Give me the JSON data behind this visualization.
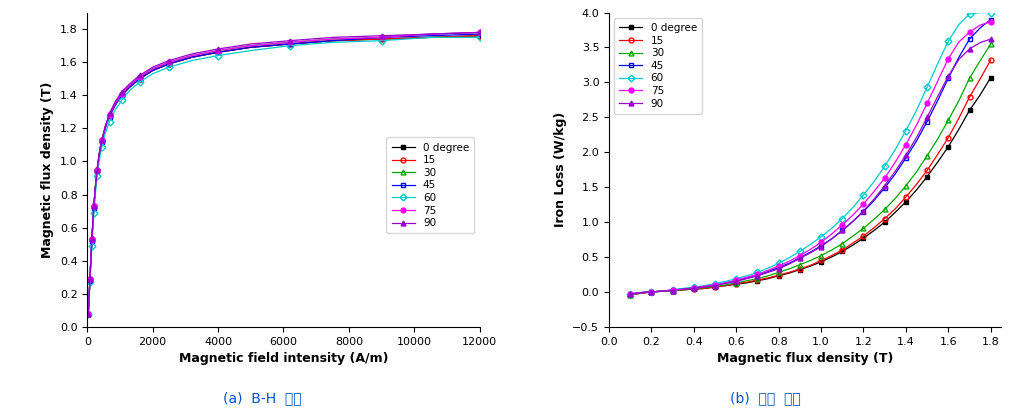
{
  "bh_xlabel": "Magnetic field intensity (A/m)",
  "bh_ylabel": "Magnetic flux density (T)",
  "bh_xlim": [
    0,
    12000
  ],
  "bh_ylim": [
    0.0,
    1.9
  ],
  "bh_yticks": [
    0.0,
    0.2,
    0.4,
    0.6,
    0.8,
    1.0,
    1.2,
    1.4,
    1.6,
    1.8
  ],
  "bh_xticks": [
    0,
    2000,
    4000,
    6000,
    8000,
    10000,
    12000
  ],
  "il_xlabel": "Magnetic flux density (T)",
  "il_ylabel": "Iron Loss (W/kg)",
  "il_xlim": [
    0.05,
    1.85
  ],
  "il_ylim": [
    -0.5,
    4.0
  ],
  "il_yticks": [
    -0.5,
    0.0,
    0.5,
    1.0,
    1.5,
    2.0,
    2.5,
    3.0,
    3.5,
    4.0
  ],
  "il_xticks": [
    0.0,
    0.2,
    0.4,
    0.6,
    0.8,
    1.0,
    1.2,
    1.4,
    1.6,
    1.8
  ],
  "caption_a": "(a)  B-H  공선",
  "caption_b": "(b)  철손  공선",
  "legend_labels": [
    "0 degree",
    "15",
    "30",
    "45",
    "60",
    "75",
    "90"
  ],
  "series_colors": [
    "#000000",
    "#ff0000",
    "#00aa00",
    "#0000ff",
    "#00cccc",
    "#ff00ff",
    "#9900cc"
  ],
  "series_markers": [
    "s",
    "o",
    "^",
    "s",
    "D",
    "o",
    "^"
  ],
  "series_fillstyle": [
    "full",
    "none",
    "none",
    "none",
    "none",
    "full",
    "full"
  ],
  "bh_H": [
    30,
    55,
    80,
    110,
    140,
    170,
    200,
    250,
    300,
    370,
    450,
    550,
    680,
    850,
    1050,
    1300,
    1600,
    2000,
    2500,
    3200,
    4000,
    5000,
    6200,
    7500,
    9000,
    10500,
    12000
  ],
  "bh_B": {
    "deg0": [
      0.08,
      0.18,
      0.29,
      0.41,
      0.53,
      0.63,
      0.73,
      0.85,
      0.95,
      1.05,
      1.13,
      1.21,
      1.28,
      1.34,
      1.4,
      1.45,
      1.5,
      1.55,
      1.59,
      1.63,
      1.66,
      1.69,
      1.71,
      1.73,
      1.74,
      1.75,
      1.76
    ],
    "deg15": [
      0.08,
      0.18,
      0.29,
      0.41,
      0.53,
      0.63,
      0.73,
      0.85,
      0.95,
      1.05,
      1.13,
      1.21,
      1.28,
      1.34,
      1.4,
      1.45,
      1.5,
      1.55,
      1.59,
      1.63,
      1.66,
      1.69,
      1.71,
      1.73,
      1.74,
      1.75,
      1.76
    ],
    "deg30": [
      0.08,
      0.18,
      0.29,
      0.41,
      0.53,
      0.63,
      0.73,
      0.85,
      0.95,
      1.05,
      1.13,
      1.21,
      1.28,
      1.35,
      1.41,
      1.46,
      1.51,
      1.56,
      1.6,
      1.64,
      1.67,
      1.7,
      1.72,
      1.74,
      1.75,
      1.77,
      1.78
    ],
    "deg45": [
      0.08,
      0.17,
      0.28,
      0.4,
      0.52,
      0.62,
      0.72,
      0.84,
      0.94,
      1.04,
      1.12,
      1.2,
      1.27,
      1.34,
      1.4,
      1.45,
      1.5,
      1.55,
      1.59,
      1.63,
      1.66,
      1.69,
      1.71,
      1.73,
      1.75,
      1.76,
      1.77
    ],
    "deg60": [
      0.08,
      0.17,
      0.27,
      0.38,
      0.49,
      0.59,
      0.69,
      0.81,
      0.91,
      1.01,
      1.09,
      1.17,
      1.24,
      1.31,
      1.37,
      1.43,
      1.48,
      1.53,
      1.57,
      1.61,
      1.64,
      1.67,
      1.7,
      1.72,
      1.73,
      1.75,
      1.75
    ],
    "deg75": [
      0.08,
      0.18,
      0.29,
      0.41,
      0.53,
      0.63,
      0.73,
      0.85,
      0.95,
      1.05,
      1.13,
      1.21,
      1.28,
      1.35,
      1.41,
      1.46,
      1.51,
      1.56,
      1.6,
      1.64,
      1.67,
      1.7,
      1.72,
      1.74,
      1.75,
      1.77,
      1.78
    ],
    "deg90": [
      0.08,
      0.18,
      0.29,
      0.41,
      0.53,
      0.63,
      0.73,
      0.85,
      0.95,
      1.05,
      1.13,
      1.21,
      1.29,
      1.36,
      1.42,
      1.47,
      1.52,
      1.57,
      1.61,
      1.65,
      1.68,
      1.71,
      1.73,
      1.75,
      1.76,
      1.77,
      1.78
    ]
  },
  "il_B": [
    0.1,
    0.15,
    0.2,
    0.25,
    0.3,
    0.35,
    0.4,
    0.45,
    0.5,
    0.55,
    0.6,
    0.65,
    0.7,
    0.75,
    0.8,
    0.85,
    0.9,
    0.95,
    1.0,
    1.05,
    1.1,
    1.15,
    1.2,
    1.25,
    1.3,
    1.35,
    1.4,
    1.45,
    1.5,
    1.55,
    1.6,
    1.65,
    1.7,
    1.75,
    1.8
  ],
  "il_W": {
    "deg0": [
      -0.04,
      -0.02,
      0.0,
      0.01,
      0.02,
      0.03,
      0.04,
      0.05,
      0.07,
      0.09,
      0.11,
      0.13,
      0.16,
      0.19,
      0.23,
      0.27,
      0.32,
      0.37,
      0.43,
      0.5,
      0.58,
      0.67,
      0.77,
      0.88,
      1.0,
      1.14,
      1.29,
      1.46,
      1.65,
      1.86,
      2.08,
      2.33,
      2.6,
      2.82,
      3.07
    ],
    "deg15": [
      -0.04,
      -0.02,
      0.0,
      0.01,
      0.02,
      0.03,
      0.04,
      0.05,
      0.07,
      0.09,
      0.12,
      0.14,
      0.17,
      0.2,
      0.24,
      0.28,
      0.33,
      0.38,
      0.45,
      0.52,
      0.6,
      0.7,
      0.8,
      0.92,
      1.05,
      1.19,
      1.36,
      1.54,
      1.74,
      1.97,
      2.21,
      2.49,
      2.79,
      3.05,
      3.32
    ],
    "deg30": [
      -0.04,
      -0.01,
      0.0,
      0.01,
      0.02,
      0.03,
      0.05,
      0.06,
      0.08,
      0.1,
      0.13,
      0.16,
      0.19,
      0.23,
      0.28,
      0.33,
      0.39,
      0.45,
      0.52,
      0.6,
      0.69,
      0.8,
      0.91,
      1.04,
      1.18,
      1.34,
      1.52,
      1.72,
      1.95,
      2.19,
      2.46,
      2.74,
      3.06,
      3.31,
      3.55
    ],
    "deg45": [
      -0.03,
      -0.01,
      0.0,
      0.01,
      0.03,
      0.04,
      0.06,
      0.08,
      0.1,
      0.13,
      0.16,
      0.2,
      0.24,
      0.29,
      0.35,
      0.41,
      0.49,
      0.57,
      0.66,
      0.76,
      0.88,
      1.01,
      1.15,
      1.31,
      1.49,
      1.69,
      1.92,
      2.16,
      2.44,
      2.74,
      3.06,
      3.36,
      3.62,
      3.78,
      3.9
    ],
    "deg60": [
      -0.03,
      -0.01,
      0.0,
      0.01,
      0.03,
      0.05,
      0.07,
      0.09,
      0.12,
      0.15,
      0.19,
      0.23,
      0.28,
      0.34,
      0.41,
      0.49,
      0.58,
      0.68,
      0.79,
      0.91,
      1.05,
      1.21,
      1.39,
      1.58,
      1.8,
      2.04,
      2.31,
      2.6,
      2.93,
      3.27,
      3.59,
      3.83,
      3.98,
      4.0,
      4.0
    ],
    "deg75": [
      -0.03,
      -0.01,
      0.0,
      0.01,
      0.03,
      0.04,
      0.06,
      0.08,
      0.1,
      0.13,
      0.17,
      0.21,
      0.25,
      0.31,
      0.37,
      0.44,
      0.52,
      0.61,
      0.71,
      0.83,
      0.96,
      1.1,
      1.26,
      1.44,
      1.63,
      1.86,
      2.11,
      2.39,
      2.7,
      3.02,
      3.34,
      3.58,
      3.72,
      3.82,
      3.87
    ],
    "deg90": [
      -0.03,
      -0.01,
      0.0,
      0.01,
      0.02,
      0.04,
      0.05,
      0.07,
      0.09,
      0.12,
      0.15,
      0.19,
      0.23,
      0.28,
      0.33,
      0.4,
      0.48,
      0.56,
      0.65,
      0.76,
      0.88,
      1.01,
      1.16,
      1.33,
      1.52,
      1.73,
      1.96,
      2.21,
      2.5,
      2.8,
      3.09,
      3.33,
      3.48,
      3.57,
      3.62
    ]
  }
}
